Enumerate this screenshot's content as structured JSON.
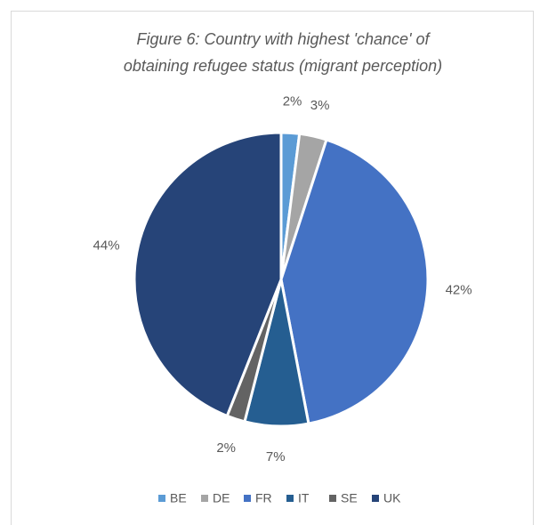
{
  "chart_data": {
    "type": "pie",
    "title": [
      "Figure 6: Country with highest 'chance' of",
      "obtaining refugee status (migrant perception)"
    ],
    "categories": [
      "BE",
      "DE",
      "FR",
      "IT",
      "SE",
      "UK"
    ],
    "values": [
      2,
      3,
      42,
      7,
      2,
      44
    ],
    "value_labels": [
      "2%",
      "3%",
      "42%",
      "7%",
      "2%",
      "44%"
    ],
    "colors": [
      "#5b9bd5",
      "#a5a5a5",
      "#4472c4",
      "#255e91",
      "#636363",
      "#264478"
    ],
    "legend": "bottom"
  }
}
